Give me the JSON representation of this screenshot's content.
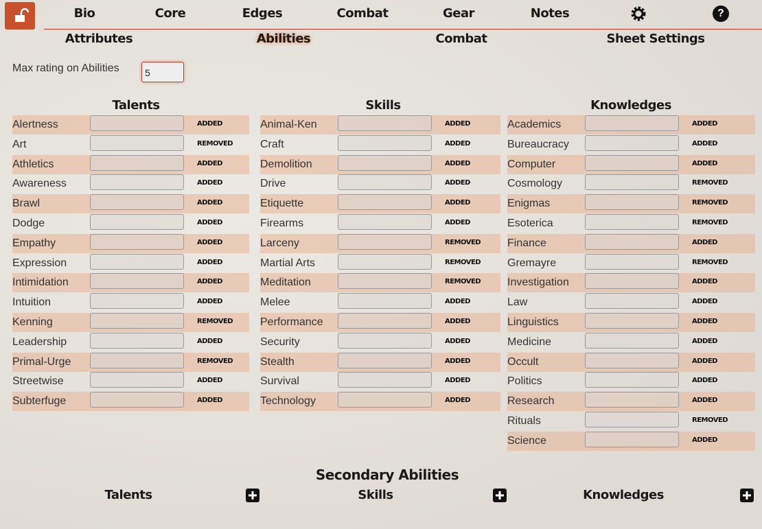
{
  "nav": {
    "tabs": [
      "Bio",
      "Core",
      "Edges",
      "Combat",
      "Gear",
      "Notes"
    ],
    "help": "?"
  },
  "subtabs": [
    "Attributes",
    "Abilities",
    "Combat",
    "Sheet Settings"
  ],
  "setting": {
    "label": "Max rating on Abilities",
    "value": "5"
  },
  "columns": [
    {
      "title": "Talents",
      "rows": [
        {
          "name": "Alertness",
          "status": "ADDED"
        },
        {
          "name": "Art",
          "status": "REMOVED"
        },
        {
          "name": "Athletics",
          "status": "ADDED"
        },
        {
          "name": "Awareness",
          "status": "ADDED"
        },
        {
          "name": "Brawl",
          "status": "ADDED"
        },
        {
          "name": "Dodge",
          "status": "ADDED"
        },
        {
          "name": "Empathy",
          "status": "ADDED"
        },
        {
          "name": "Expression",
          "status": "ADDED"
        },
        {
          "name": "Intimidation",
          "status": "ADDED"
        },
        {
          "name": "Intuition",
          "status": "ADDED"
        },
        {
          "name": "Kenning",
          "status": "REMOVED"
        },
        {
          "name": "Leadership",
          "status": "ADDED"
        },
        {
          "name": "Primal-Urge",
          "status": "REMOVED"
        },
        {
          "name": "Streetwise",
          "status": "ADDED"
        },
        {
          "name": "Subterfuge",
          "status": "ADDED"
        }
      ]
    },
    {
      "title": "Skills",
      "rows": [
        {
          "name": "Animal-Ken",
          "status": "ADDED"
        },
        {
          "name": "Craft",
          "status": "ADDED"
        },
        {
          "name": "Demolition",
          "status": "ADDED"
        },
        {
          "name": "Drive",
          "status": "ADDED"
        },
        {
          "name": "Etiquette",
          "status": "ADDED"
        },
        {
          "name": "Firearms",
          "status": "ADDED"
        },
        {
          "name": "Larceny",
          "status": "REMOVED"
        },
        {
          "name": "Martial Arts",
          "status": "REMOVED"
        },
        {
          "name": "Meditation",
          "status": "REMOVED"
        },
        {
          "name": "Melee",
          "status": "ADDED"
        },
        {
          "name": "Performance",
          "status": "ADDED"
        },
        {
          "name": "Security",
          "status": "ADDED"
        },
        {
          "name": "Stealth",
          "status": "ADDED"
        },
        {
          "name": "Survival",
          "status": "ADDED"
        },
        {
          "name": "Technology",
          "status": "ADDED"
        }
      ]
    },
    {
      "title": "Knowledges",
      "rows": [
        {
          "name": "Academics",
          "status": "ADDED"
        },
        {
          "name": "Bureaucracy",
          "status": "ADDED"
        },
        {
          "name": "Computer",
          "status": "ADDED"
        },
        {
          "name": "Cosmology",
          "status": "REMOVED"
        },
        {
          "name": "Enigmas",
          "status": "REMOVED"
        },
        {
          "name": "Esoterica",
          "status": "REMOVED"
        },
        {
          "name": "Finance",
          "status": "ADDED"
        },
        {
          "name": "Gremayre",
          "status": "REMOVED"
        },
        {
          "name": "Investigation",
          "status": "ADDED"
        },
        {
          "name": "Law",
          "status": "ADDED"
        },
        {
          "name": "Linguistics",
          "status": "ADDED"
        },
        {
          "name": "Medicine",
          "status": "ADDED"
        },
        {
          "name": "Occult",
          "status": "ADDED"
        },
        {
          "name": "Politics",
          "status": "ADDED"
        },
        {
          "name": "Research",
          "status": "ADDED"
        },
        {
          "name": "Rituals",
          "status": "REMOVED"
        },
        {
          "name": "Science",
          "status": "ADDED"
        }
      ]
    }
  ],
  "secondary": {
    "title": "Secondary Abilities",
    "sections": [
      "Talents",
      "Skills",
      "Knowledges"
    ]
  }
}
